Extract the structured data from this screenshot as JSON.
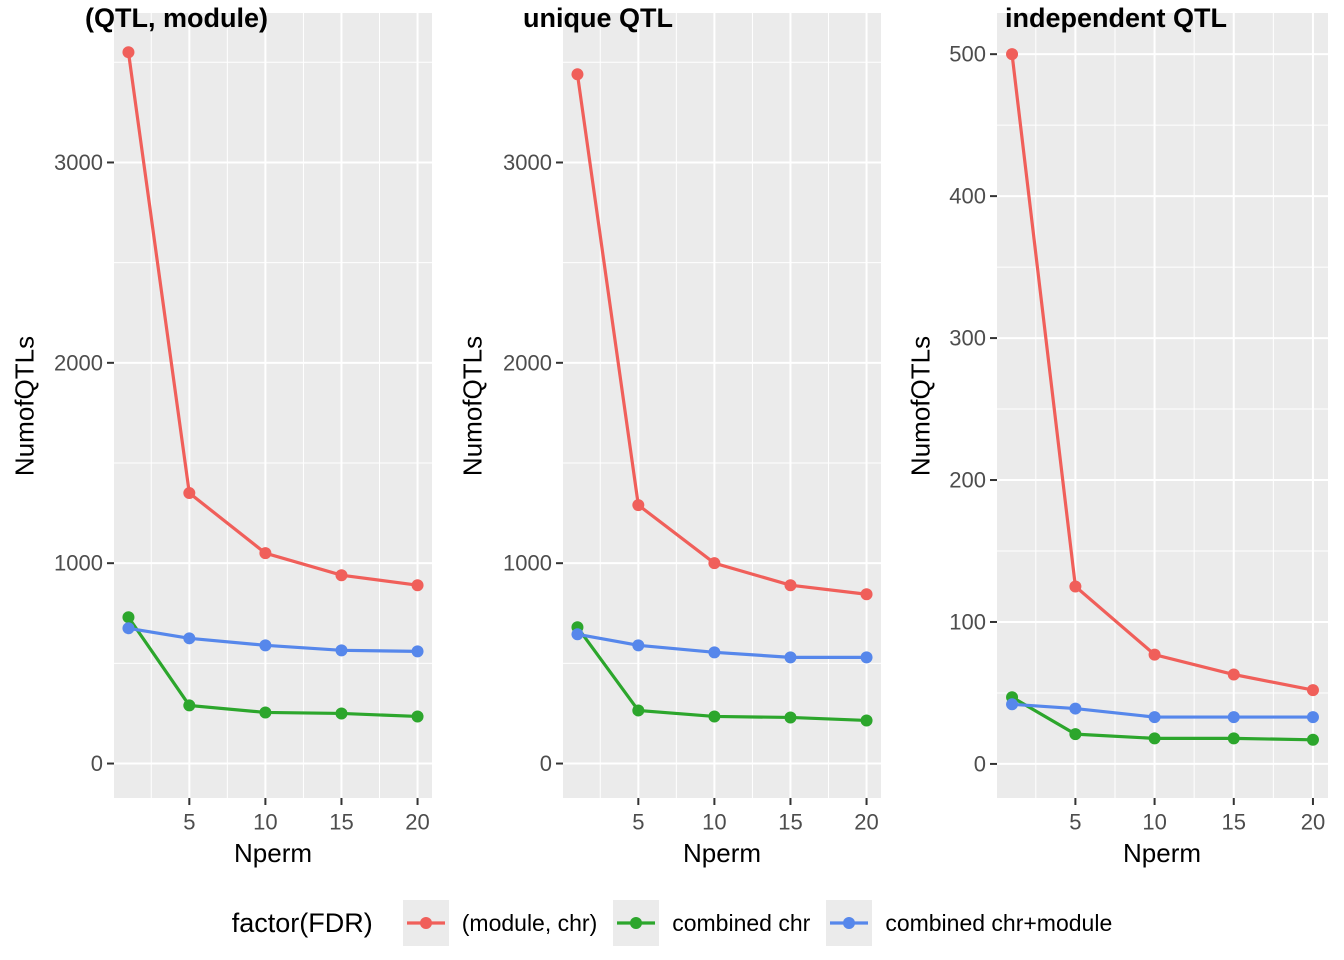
{
  "figure": {
    "background": "#FFFFFF"
  },
  "colors": {
    "red": "#F05F5A",
    "green": "#2CA62C",
    "blue": "#5687EB",
    "panel_bg": "#EBEBEB",
    "grid": "#FFFFFF",
    "axis_text": "#4D4D4D",
    "tick_mark": "#333333",
    "text": "#000000"
  },
  "chart_data": [
    {
      "type": "line",
      "title": "(QTL, module)",
      "xlabel": "Nperm",
      "ylabel": "NumofQTLs",
      "x": [
        1,
        5,
        10,
        15,
        20
      ],
      "xticks": [
        5,
        10,
        15,
        20
      ],
      "xminor": [
        2.5,
        7.5,
        12.5,
        17.5
      ],
      "xlim": [
        0.05,
        20.95
      ],
      "yticks": [
        0,
        1000,
        2000,
        3000
      ],
      "yminor": [
        500,
        1500,
        2500,
        3500
      ],
      "ylim": [
        -172,
        3746
      ],
      "grid": "on",
      "series": [
        {
          "name": "(module, chr)",
          "color_key": "red",
          "values": [
            3550,
            1350,
            1050,
            940,
            890
          ]
        },
        {
          "name": "combined chr",
          "color_key": "green",
          "values": [
            730,
            290,
            255,
            250,
            235
          ]
        },
        {
          "name": "combined chr+module",
          "color_key": "blue",
          "values": [
            675,
            625,
            590,
            565,
            560
          ]
        }
      ]
    },
    {
      "type": "line",
      "title": "unique QTL",
      "xlabel": "Nperm",
      "ylabel": "NumofQTLs",
      "x": [
        1,
        5,
        10,
        15,
        20
      ],
      "xticks": [
        5,
        10,
        15,
        20
      ],
      "xminor": [
        2.5,
        7.5,
        12.5,
        17.5
      ],
      "xlim": [
        0.05,
        20.95
      ],
      "yticks": [
        0,
        1000,
        2000,
        3000
      ],
      "yminor": [
        500,
        1500,
        2500,
        3500
      ],
      "ylim": [
        -172,
        3746
      ],
      "grid": "on",
      "series": [
        {
          "name": "(module, chr)",
          "color_key": "red",
          "values": [
            3440,
            1290,
            1000,
            890,
            845
          ]
        },
        {
          "name": "combined chr",
          "color_key": "green",
          "values": [
            680,
            265,
            235,
            230,
            215
          ]
        },
        {
          "name": "combined chr+module",
          "color_key": "blue",
          "values": [
            645,
            590,
            555,
            530,
            530
          ]
        }
      ]
    },
    {
      "type": "line",
      "title": "independent QTL",
      "xlabel": "Nperm",
      "ylabel": "NumofQTLs",
      "x": [
        1,
        5,
        10,
        15,
        20
      ],
      "xticks": [
        5,
        10,
        15,
        20
      ],
      "xminor": [
        2.5,
        7.5,
        12.5,
        17.5
      ],
      "xlim": [
        0.05,
        20.95
      ],
      "yticks": [
        0,
        100,
        200,
        300,
        400,
        500
      ],
      "yminor": [
        50,
        150,
        250,
        350,
        450
      ],
      "ylim": [
        -24,
        529
      ],
      "grid": "on",
      "series": [
        {
          "name": "(module, chr)",
          "color_key": "red",
          "values": [
            500,
            125,
            77,
            63,
            52
          ]
        },
        {
          "name": "combined chr",
          "color_key": "green",
          "values": [
            47,
            21,
            18,
            18,
            17
          ]
        },
        {
          "name": "combined chr+module",
          "color_key": "blue",
          "values": [
            42,
            39,
            33,
            33,
            33
          ]
        }
      ]
    }
  ],
  "legend": {
    "title": "factor(FDR)",
    "position": "bottom",
    "items": [
      {
        "label": "(module, chr)",
        "color_key": "red"
      },
      {
        "label": "combined chr",
        "color_key": "green"
      },
      {
        "label": "combined chr+module",
        "color_key": "blue"
      }
    ]
  }
}
